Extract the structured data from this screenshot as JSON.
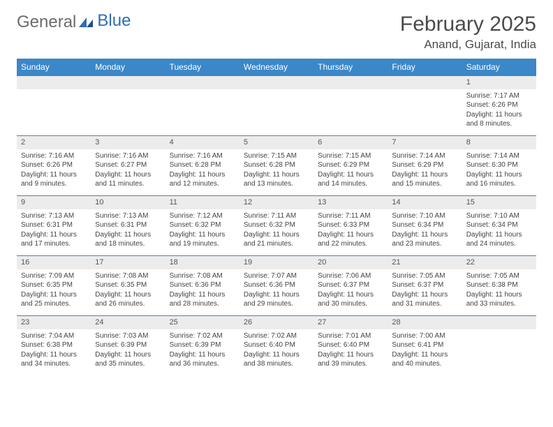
{
  "logo": {
    "part1": "General",
    "part2": "Blue"
  },
  "title": "February 2025",
  "location": "Anand, Gujarat, India",
  "colors": {
    "header_bg": "#3b87c8",
    "header_text": "#ffffff",
    "daynum_bg": "#ececec",
    "row_divider": "#5b7da0",
    "logo_gray": "#6c6c6c",
    "logo_blue": "#2f6fb0",
    "page_bg": "#ffffff"
  },
  "weekdays": [
    "Sunday",
    "Monday",
    "Tuesday",
    "Wednesday",
    "Thursday",
    "Friday",
    "Saturday"
  ],
  "weeks": [
    [
      {
        "n": "",
        "empty": true
      },
      {
        "n": "",
        "empty": true
      },
      {
        "n": "",
        "empty": true
      },
      {
        "n": "",
        "empty": true
      },
      {
        "n": "",
        "empty": true
      },
      {
        "n": "",
        "empty": true
      },
      {
        "n": "1",
        "sunrise": "Sunrise: 7:17 AM",
        "sunset": "Sunset: 6:26 PM",
        "daylight": "Daylight: 11 hours and 8 minutes."
      }
    ],
    [
      {
        "n": "2",
        "sunrise": "Sunrise: 7:16 AM",
        "sunset": "Sunset: 6:26 PM",
        "daylight": "Daylight: 11 hours and 9 minutes."
      },
      {
        "n": "3",
        "sunrise": "Sunrise: 7:16 AM",
        "sunset": "Sunset: 6:27 PM",
        "daylight": "Daylight: 11 hours and 11 minutes."
      },
      {
        "n": "4",
        "sunrise": "Sunrise: 7:16 AM",
        "sunset": "Sunset: 6:28 PM",
        "daylight": "Daylight: 11 hours and 12 minutes."
      },
      {
        "n": "5",
        "sunrise": "Sunrise: 7:15 AM",
        "sunset": "Sunset: 6:28 PM",
        "daylight": "Daylight: 11 hours and 13 minutes."
      },
      {
        "n": "6",
        "sunrise": "Sunrise: 7:15 AM",
        "sunset": "Sunset: 6:29 PM",
        "daylight": "Daylight: 11 hours and 14 minutes."
      },
      {
        "n": "7",
        "sunrise": "Sunrise: 7:14 AM",
        "sunset": "Sunset: 6:29 PM",
        "daylight": "Daylight: 11 hours and 15 minutes."
      },
      {
        "n": "8",
        "sunrise": "Sunrise: 7:14 AM",
        "sunset": "Sunset: 6:30 PM",
        "daylight": "Daylight: 11 hours and 16 minutes."
      }
    ],
    [
      {
        "n": "9",
        "sunrise": "Sunrise: 7:13 AM",
        "sunset": "Sunset: 6:31 PM",
        "daylight": "Daylight: 11 hours and 17 minutes."
      },
      {
        "n": "10",
        "sunrise": "Sunrise: 7:13 AM",
        "sunset": "Sunset: 6:31 PM",
        "daylight": "Daylight: 11 hours and 18 minutes."
      },
      {
        "n": "11",
        "sunrise": "Sunrise: 7:12 AM",
        "sunset": "Sunset: 6:32 PM",
        "daylight": "Daylight: 11 hours and 19 minutes."
      },
      {
        "n": "12",
        "sunrise": "Sunrise: 7:11 AM",
        "sunset": "Sunset: 6:32 PM",
        "daylight": "Daylight: 11 hours and 21 minutes."
      },
      {
        "n": "13",
        "sunrise": "Sunrise: 7:11 AM",
        "sunset": "Sunset: 6:33 PM",
        "daylight": "Daylight: 11 hours and 22 minutes."
      },
      {
        "n": "14",
        "sunrise": "Sunrise: 7:10 AM",
        "sunset": "Sunset: 6:34 PM",
        "daylight": "Daylight: 11 hours and 23 minutes."
      },
      {
        "n": "15",
        "sunrise": "Sunrise: 7:10 AM",
        "sunset": "Sunset: 6:34 PM",
        "daylight": "Daylight: 11 hours and 24 minutes."
      }
    ],
    [
      {
        "n": "16",
        "sunrise": "Sunrise: 7:09 AM",
        "sunset": "Sunset: 6:35 PM",
        "daylight": "Daylight: 11 hours and 25 minutes."
      },
      {
        "n": "17",
        "sunrise": "Sunrise: 7:08 AM",
        "sunset": "Sunset: 6:35 PM",
        "daylight": "Daylight: 11 hours and 26 minutes."
      },
      {
        "n": "18",
        "sunrise": "Sunrise: 7:08 AM",
        "sunset": "Sunset: 6:36 PM",
        "daylight": "Daylight: 11 hours and 28 minutes."
      },
      {
        "n": "19",
        "sunrise": "Sunrise: 7:07 AM",
        "sunset": "Sunset: 6:36 PM",
        "daylight": "Daylight: 11 hours and 29 minutes."
      },
      {
        "n": "20",
        "sunrise": "Sunrise: 7:06 AM",
        "sunset": "Sunset: 6:37 PM",
        "daylight": "Daylight: 11 hours and 30 minutes."
      },
      {
        "n": "21",
        "sunrise": "Sunrise: 7:05 AM",
        "sunset": "Sunset: 6:37 PM",
        "daylight": "Daylight: 11 hours and 31 minutes."
      },
      {
        "n": "22",
        "sunrise": "Sunrise: 7:05 AM",
        "sunset": "Sunset: 6:38 PM",
        "daylight": "Daylight: 11 hours and 33 minutes."
      }
    ],
    [
      {
        "n": "23",
        "sunrise": "Sunrise: 7:04 AM",
        "sunset": "Sunset: 6:38 PM",
        "daylight": "Daylight: 11 hours and 34 minutes."
      },
      {
        "n": "24",
        "sunrise": "Sunrise: 7:03 AM",
        "sunset": "Sunset: 6:39 PM",
        "daylight": "Daylight: 11 hours and 35 minutes."
      },
      {
        "n": "25",
        "sunrise": "Sunrise: 7:02 AM",
        "sunset": "Sunset: 6:39 PM",
        "daylight": "Daylight: 11 hours and 36 minutes."
      },
      {
        "n": "26",
        "sunrise": "Sunrise: 7:02 AM",
        "sunset": "Sunset: 6:40 PM",
        "daylight": "Daylight: 11 hours and 38 minutes."
      },
      {
        "n": "27",
        "sunrise": "Sunrise: 7:01 AM",
        "sunset": "Sunset: 6:40 PM",
        "daylight": "Daylight: 11 hours and 39 minutes."
      },
      {
        "n": "28",
        "sunrise": "Sunrise: 7:00 AM",
        "sunset": "Sunset: 6:41 PM",
        "daylight": "Daylight: 11 hours and 40 minutes."
      },
      {
        "n": "",
        "empty": true
      }
    ]
  ]
}
